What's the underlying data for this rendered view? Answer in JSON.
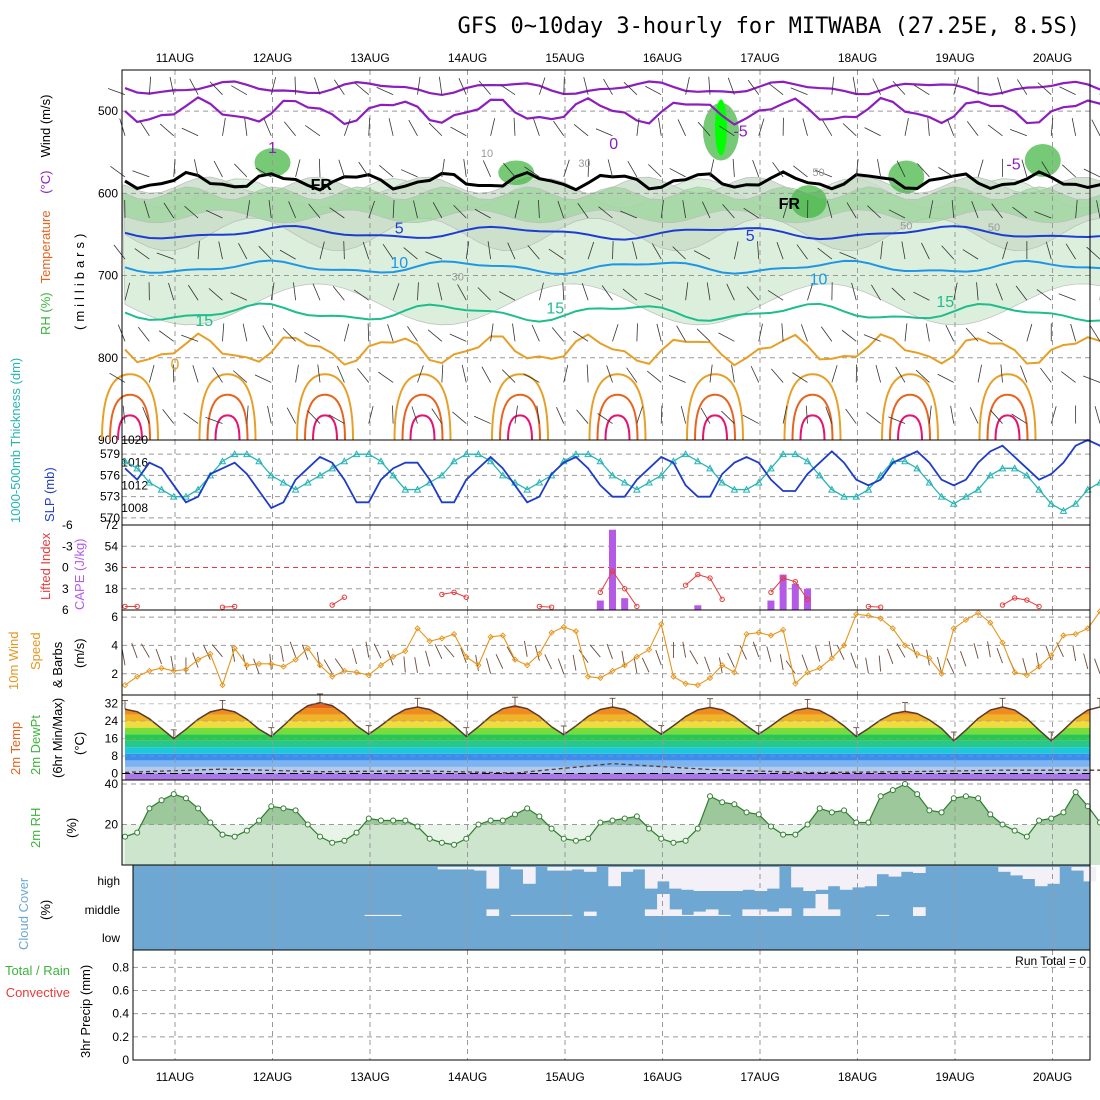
{
  "title": "GFS 0~10day 3-hourly for MITWABA (27.25E, 8.5S)",
  "dates": [
    "11AUG",
    "12AUG",
    "13AUG",
    "14AUG",
    "15AUG",
    "16AUG",
    "17AUG",
    "18AUG",
    "19AUG",
    "20AUG"
  ],
  "colors": {
    "rh_dark": "#3cb43c",
    "rh_mid": "#8cd28c",
    "rh_light": "#dcefdc",
    "rh_bright": "#00ff00",
    "temp_purple": "#8c1ebe",
    "temp_blue": "#1e3cd2",
    "temp_cyan": "#1e96e6",
    "temp_teal": "#1ebe8c",
    "temp_orange": "#e6a028",
    "temp_red": "#e6641e",
    "temp_pink": "#e6146e",
    "slp": "#1e3cc8",
    "thickness": "#28b4b4",
    "lifted": "#e63c3c",
    "cape": "#b45ae6",
    "wind": "#e6961e",
    "cloud": "#6ea8d2",
    "cloud_clear": "#f4f0f8"
  },
  "chart_data": [
    {
      "id": "upper-air",
      "type": "contour",
      "ylabel_parts": [
        {
          "text": "RH (%)",
          "color": "#3cb43c"
        },
        {
          "text": "Temperature",
          "color": "#e6641e"
        },
        {
          "text": "(°C)",
          "color": "#8c1ebe"
        },
        {
          "text": "Wind (m/s)",
          "color": "#000000"
        }
      ],
      "ylabel2": "(millibars)",
      "y_ticks": [
        500,
        600,
        700,
        800,
        900
      ],
      "ylim": [
        900,
        450
      ],
      "contour_labels": [
        {
          "text": "-5",
          "day": 5.8,
          "p": 525,
          "color": "#8c1ebe"
        },
        {
          "text": "-5",
          "day": 8.6,
          "p": 565,
          "color": "#8c1ebe"
        },
        {
          "text": "0",
          "day": 4.5,
          "p": 540,
          "color": "#8c1ebe"
        },
        {
          "text": "1",
          "day": 1.0,
          "p": 545,
          "color": "#8c1ebe"
        },
        {
          "text": "5",
          "day": 2.3,
          "p": 643,
          "color": "#1e3cd2"
        },
        {
          "text": "5",
          "day": 5.9,
          "p": 652,
          "color": "#1e3cd2"
        },
        {
          "text": "10",
          "day": 2.3,
          "p": 685,
          "color": "#1e96e6"
        },
        {
          "text": "10",
          "day": 6.6,
          "p": 705,
          "color": "#1e96e6"
        },
        {
          "text": "15",
          "day": 0.3,
          "p": 755,
          "color": "#1ebe8c"
        },
        {
          "text": "15",
          "day": 3.9,
          "p": 740,
          "color": "#1ebe8c"
        },
        {
          "text": "15",
          "day": 7.9,
          "p": 732,
          "color": "#1ebe8c"
        },
        {
          "text": "0",
          "day": 0.0,
          "p": 808,
          "color": "#e6a028"
        },
        {
          "text": "FR",
          "day": 1.5,
          "p": 590,
          "color": "#000000"
        },
        {
          "text": "FR",
          "day": 6.3,
          "p": 613,
          "color": "#000000"
        },
        {
          "text": "10",
          "day": 3.2,
          "p": 550,
          "color": "#999999"
        },
        {
          "text": "30",
          "day": 4.2,
          "p": 562,
          "color": "#999999"
        },
        {
          "text": "50",
          "day": 6.6,
          "p": 573,
          "color": "#999999"
        },
        {
          "text": "50",
          "day": 7.5,
          "p": 638,
          "color": "#999999"
        },
        {
          "text": "50",
          "day": 8.4,
          "p": 640,
          "color": "#999999"
        },
        {
          "text": "30",
          "day": 2.9,
          "p": 700,
          "color": "#999999"
        }
      ]
    },
    {
      "id": "slp-thickness",
      "type": "line",
      "ylabel_left": "1000-500mb Thickness (dm)",
      "ylabel_right": "SLP (mb)",
      "left_ticks": [
        570,
        573,
        576,
        579
      ],
      "right_ticks": [
        1008,
        1012,
        1016,
        1020
      ],
      "thickness_range": [
        569,
        581
      ],
      "slp_range": [
        1005,
        1020
      ],
      "slp": [
        1015,
        1013,
        1016,
        1015,
        1012,
        1009,
        1010,
        1014,
        1015,
        1016,
        1014,
        1011,
        1008,
        1009,
        1013,
        1015,
        1017,
        1016,
        1013,
        1009,
        1009,
        1013,
        1015,
        1016,
        1016,
        1013,
        1009,
        1009,
        1013,
        1015,
        1017,
        1015,
        1012,
        1009,
        1010,
        1014,
        1016,
        1017,
        1015,
        1012,
        1010,
        1010,
        1013,
        1015,
        1017,
        1016,
        1012,
        1010,
        1010,
        1014,
        1016,
        1017,
        1016,
        1013,
        1011,
        1011,
        1014,
        1016,
        1018,
        1016,
        1013,
        1012,
        1013,
        1016,
        1017,
        1018,
        1016,
        1013,
        1012,
        1013,
        1016,
        1018,
        1019,
        1017,
        1015,
        1013,
        1014,
        1016,
        1019,
        1020,
        1019,
        1016,
        1014,
        1014,
        1017,
        1019,
        1018
      ],
      "thickness": [
        578,
        577,
        575,
        574,
        573,
        573,
        574,
        576,
        578,
        579,
        579,
        578,
        576,
        575,
        574,
        575,
        576,
        577,
        578,
        579,
        579,
        578,
        576,
        574,
        574,
        575,
        576,
        578,
        579,
        579,
        578,
        576,
        575,
        574,
        575,
        576,
        578,
        579,
        579,
        578,
        576,
        575,
        574,
        575,
        576,
        578,
        579,
        578,
        577,
        575,
        574,
        574,
        575,
        577,
        579,
        579,
        578,
        576,
        574,
        573,
        573,
        574,
        576,
        578,
        578,
        577,
        575,
        573,
        572,
        573,
        574,
        576,
        577,
        577,
        576,
        574,
        572,
        571,
        572,
        574,
        575,
        574,
        573,
        571,
        570,
        570,
        571
      ]
    },
    {
      "id": "lifted-cape",
      "type": "bar+line",
      "ylabel_left": "Lifted Index",
      "ylabel_right": "CAPE (J/kg)",
      "left_ticks": [
        "6",
        "3",
        "0",
        "-3",
        "-6"
      ],
      "right_ticks": [
        18,
        36,
        54,
        72
      ],
      "cape": [
        {
          "i": 39,
          "v": 8
        },
        {
          "i": 40,
          "v": 68
        },
        {
          "i": 41,
          "v": 10
        },
        {
          "i": 47,
          "v": 4
        },
        {
          "i": 53,
          "v": 8
        },
        {
          "i": 54,
          "v": 30
        },
        {
          "i": 55,
          "v": 22
        },
        {
          "i": 56,
          "v": 18
        }
      ],
      "lifted_points": [
        {
          "i": 0,
          "v": 5.5
        },
        {
          "i": 1,
          "v": 5.5
        },
        {
          "i": 8,
          "v": 5.6
        },
        {
          "i": 9,
          "v": 5.5
        },
        {
          "i": 17,
          "v": 5.3
        },
        {
          "i": 18,
          "v": 4.2
        },
        {
          "i": 26,
          "v": 3.8
        },
        {
          "i": 27,
          "v": 3.5
        },
        {
          "i": 28,
          "v": 4.2
        },
        {
          "i": 34,
          "v": 5.5
        },
        {
          "i": 35,
          "v": 5.6
        },
        {
          "i": 39,
          "v": 3.5
        },
        {
          "i": 40,
          "v": 0.5
        },
        {
          "i": 41,
          "v": 3.0
        },
        {
          "i": 42,
          "v": 5.5
        },
        {
          "i": 46,
          "v": 2.5
        },
        {
          "i": 47,
          "v": 1.0
        },
        {
          "i": 48,
          "v": 1.5
        },
        {
          "i": 49,
          "v": 4.5
        },
        {
          "i": 53,
          "v": 3.5
        },
        {
          "i": 54,
          "v": 1.5
        },
        {
          "i": 55,
          "v": 2.0
        },
        {
          "i": 56,
          "v": 4.5
        },
        {
          "i": 61,
          "v": 5.5
        },
        {
          "i": 62,
          "v": 5.6
        },
        {
          "i": 72,
          "v": 5.3
        },
        {
          "i": 73,
          "v": 4.3
        },
        {
          "i": 74,
          "v": 4.6
        },
        {
          "i": 75,
          "v": 5.5
        }
      ]
    },
    {
      "id": "wind10m",
      "type": "line",
      "ylabel_parts": [
        {
          "text": "10m Wind",
          "color": "#e6961e"
        },
        {
          "text": "Speed",
          "color": "#e6961e"
        },
        {
          "text": "& Barbs",
          "color": "#000000"
        },
        {
          "text": "(m/s)",
          "color": "#000000"
        }
      ],
      "y_ticks": [
        2,
        4,
        6
      ],
      "ylim": [
        0.5,
        6.5
      ],
      "speed": [
        1.2,
        1.8,
        2.2,
        2.4,
        2.2,
        2.3,
        3.0,
        3.4,
        1.2,
        3.8,
        2.6,
        2.7,
        2.7,
        2.5,
        3.0,
        3.8,
        2.6,
        1.8,
        2.2,
        2.1,
        1.9,
        2.6,
        3.2,
        3.6,
        5.2,
        4.3,
        4.5,
        4.8,
        3.2,
        2.6,
        4.6,
        4.7,
        3.0,
        2.6,
        3.4,
        4.9,
        5.3,
        5.0,
        1.8,
        1.7,
        2.2,
        2.6,
        3.2,
        3.7,
        5.5,
        1.8,
        1.3,
        1.2,
        1.7,
        2.6,
        2.1,
        4.8,
        4.9,
        4.7,
        5.1,
        1.3,
        2.1,
        2.4,
        3.1,
        4.0,
        6.2,
        6.1,
        5.9,
        5.2,
        4.0,
        3.4,
        3.1,
        2.0,
        5.2,
        5.8,
        6.3,
        5.6,
        4.2,
        2.1,
        1.9,
        2.5,
        3.3,
        4.7,
        4.8,
        5.2,
        6.4,
        5.3,
        4.4,
        3.0,
        2.4,
        3.3,
        3.6,
        5.9
      ],
      "barbs": [
        70,
        60,
        50,
        60,
        70,
        80,
        60,
        55,
        40,
        70,
        65,
        60,
        75,
        70,
        60,
        60,
        70,
        50,
        45,
        65,
        70,
        55,
        60,
        75,
        70,
        65,
        55,
        40,
        60,
        70,
        65,
        55,
        50,
        70,
        65,
        55,
        60,
        70,
        45,
        40,
        60,
        70,
        70,
        55,
        60,
        80,
        70,
        50,
        60,
        70,
        55,
        55,
        60,
        65,
        70,
        45,
        60,
        65,
        70,
        55,
        60,
        70,
        75,
        60,
        50,
        60,
        70,
        65,
        55,
        60,
        65,
        70,
        60,
        55,
        65,
        70,
        60,
        55,
        70,
        65,
        60,
        50,
        60,
        70,
        65,
        60,
        55
      ]
    },
    {
      "id": "temp2m",
      "type": "area",
      "ylabel_parts": [
        {
          "text": "2m Temp",
          "color": "#e6641e"
        },
        {
          "text": "2m DewPt",
          "color": "#3cb43c"
        },
        {
          "text": "(6hr Min/Max)",
          "color": "#000000"
        },
        {
          "text": "(°C)",
          "color": "#000000"
        }
      ],
      "y_ticks": [
        0,
        8,
        16,
        24,
        32
      ],
      "ylim": [
        -3,
        36
      ],
      "temp_max": [
        29.5,
        29.5,
        32.5,
        30.5,
        31.0,
        30.5,
        30.3,
        30.0,
        28.5,
        30.5
      ],
      "temp_min": [
        16.5,
        16.0,
        17.0,
        18.0,
        17.0,
        17.8,
        18.0,
        18.0,
        17.0,
        15.0
      ],
      "dew": [
        0.5,
        2.0,
        0.8,
        1.2,
        0.2,
        4.5,
        1.8,
        0.4,
        0.8,
        1.5,
        1.5,
        -1.0
      ],
      "bands": [
        {
          "lo": -3,
          "hi": 0,
          "color": "#aa78e6"
        },
        {
          "lo": 0,
          "hi": 3,
          "color": "#b4c8f0"
        },
        {
          "lo": 3,
          "hi": 6,
          "color": "#7cb4f0"
        },
        {
          "lo": 6,
          "hi": 9,
          "color": "#3c8cf0"
        },
        {
          "lo": 9,
          "hi": 12,
          "color": "#1ec8dc"
        },
        {
          "lo": 12,
          "hi": 15,
          "color": "#28c88c"
        },
        {
          "lo": 15,
          "hi": 18,
          "color": "#28c850"
        },
        {
          "lo": 18,
          "hi": 21,
          "color": "#78dc3c"
        },
        {
          "lo": 21,
          "hi": 24,
          "color": "#f0dc3c"
        },
        {
          "lo": 24,
          "hi": 27,
          "color": "#f0b428"
        },
        {
          "lo": 27,
          "hi": 30,
          "color": "#f08c1e"
        },
        {
          "lo": 30,
          "hi": 33,
          "color": "#e6641e"
        },
        {
          "lo": 33,
          "hi": 36,
          "color": "#c8321e"
        }
      ]
    },
    {
      "id": "rh2m",
      "type": "area",
      "ylabel": "2m RH",
      "ylabel2": "(%)",
      "y_ticks": [
        20,
        40
      ],
      "ylim": [
        0,
        42
      ],
      "rh": [
        14,
        16,
        28,
        32,
        35,
        33,
        28,
        21,
        15,
        14,
        17,
        22,
        29,
        28,
        27,
        20,
        14,
        11,
        12,
        16,
        23,
        22,
        22,
        22,
        19,
        13,
        11,
        10,
        13,
        20,
        22,
        22,
        25,
        28,
        24,
        18,
        13,
        12,
        13,
        21,
        22,
        23,
        24,
        18,
        13,
        11,
        12,
        18,
        34,
        31,
        30,
        26,
        25,
        19,
        15,
        15,
        20,
        28,
        26,
        27,
        21,
        21,
        34,
        37,
        40,
        35,
        27,
        26,
        33,
        34,
        33,
        25,
        20,
        17,
        14,
        22,
        23,
        26,
        36,
        29,
        21,
        14,
        15,
        25,
        25,
        25,
        30,
        27
      ]
    },
    {
      "id": "cloud",
      "type": "bar",
      "ylabel": "Cloud Cover",
      "ylabel2": "(%)",
      "level_labels": [
        "high",
        "middle",
        "low"
      ],
      "high_cols": [
        26,
        27,
        28,
        29,
        30,
        32,
        33,
        35,
        36,
        37,
        38,
        40,
        41,
        42,
        43,
        44,
        45,
        46,
        47,
        48,
        49,
        50,
        51,
        52,
        53,
        55,
        56,
        57,
        58,
        59,
        60,
        61,
        62,
        63,
        64,
        65,
        72,
        73,
        74,
        75,
        76,
        78,
        79
      ],
      "high_vals": [
        0.1,
        0.1,
        0.1,
        0.15,
        0.9,
        0.1,
        0.7,
        0.15,
        0.15,
        0.1,
        0.2,
        0.8,
        0.2,
        0.1,
        0.9,
        0.6,
        0.9,
        0.95,
        1,
        1,
        1,
        1,
        0.95,
        1,
        0.9,
        0.85,
        1,
        0.95,
        0.8,
        0.95,
        0.85,
        0.8,
        0.3,
        0.4,
        0.2,
        0.25,
        0.2,
        0.35,
        0.5,
        0.8,
        0.7,
        0.15,
        0.6
      ],
      "mid_cols": [
        20,
        21,
        22,
        30,
        32,
        33,
        34,
        35,
        36,
        38,
        43,
        44,
        45,
        46,
        47,
        48,
        49,
        51,
        52,
        53,
        54,
        56,
        57,
        58,
        62,
        65
      ],
      "mid_vals": [
        0.05,
        0.05,
        0.05,
        0.3,
        0.05,
        0.05,
        0.05,
        0.05,
        0.05,
        0.2,
        0.3,
        1,
        0.3,
        0.05,
        0.2,
        0.3,
        0.05,
        0.3,
        0.3,
        0.2,
        0.35,
        0.35,
        1,
        0.3,
        0.05,
        0.4
      ],
      "low_cols": [],
      "low_vals": []
    },
    {
      "id": "precip",
      "type": "bar",
      "ylabel_parts": [
        {
          "text": "Total / Rain",
          "color": "#3cb43c"
        },
        {
          "text": "Convective",
          "color": "#e63c3c"
        },
        {
          "text": "3hr Precip (mm)",
          "color": "#000000"
        }
      ],
      "annotation": "Run Total = 0",
      "y_ticks": [
        "0",
        "0.2",
        "0.4",
        "0.6",
        "0.8"
      ],
      "ylim": [
        0,
        0.95
      ],
      "values": []
    }
  ]
}
